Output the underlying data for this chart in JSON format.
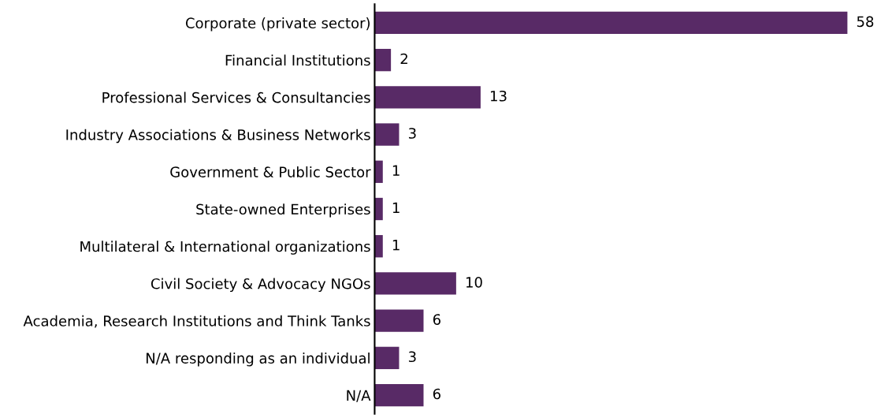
{
  "chart_data": {
    "type": "bar",
    "orientation": "horizontal",
    "categories": [
      "Corporate (private sector)",
      "Financial Institutions",
      "Professional Services & Consultancies",
      "Industry Associations & Business Networks",
      "Government & Public Sector",
      "State-owned Enterprises",
      "Multilateral & International organizations",
      "Civil Society & Advocacy NGOs",
      "Academia, Research Institutions and Think Tanks",
      "N/A responding as an individual",
      "N/A"
    ],
    "values": [
      58,
      2,
      13,
      3,
      1,
      1,
      1,
      10,
      6,
      3,
      6
    ],
    "color": "#582a66",
    "data_labels": true,
    "tick_labels": "y",
    "grid": false
  }
}
